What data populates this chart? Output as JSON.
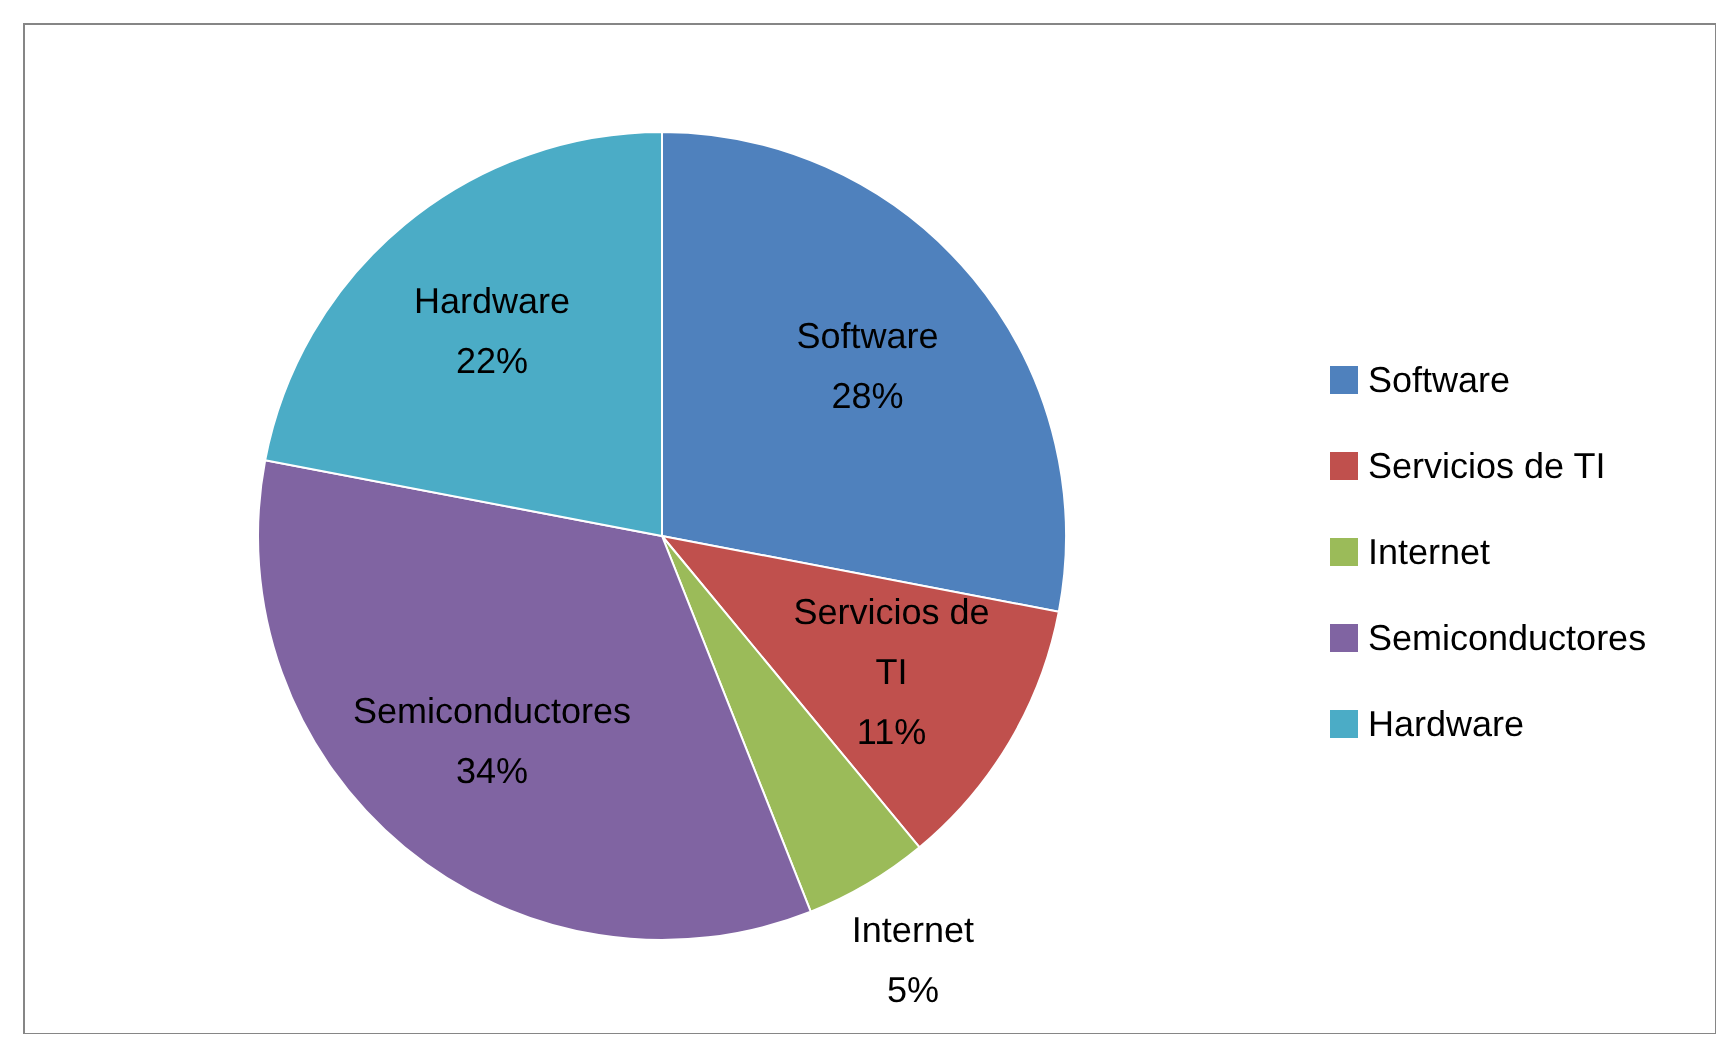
{
  "chart_data": {
    "type": "pie",
    "categories": [
      "Software",
      "Servicios de TI",
      "Internet",
      "Semiconductores",
      "Hardware"
    ],
    "values": [
      28,
      11,
      5,
      34,
      22
    ],
    "colors": [
      "#4f81bd",
      "#c0504d",
      "#9bbb59",
      "#8064a2",
      "#4bacc6"
    ],
    "value_labels": [
      "28%",
      "11%",
      "5%",
      "34%",
      "22%"
    ],
    "legend": "right"
  }
}
